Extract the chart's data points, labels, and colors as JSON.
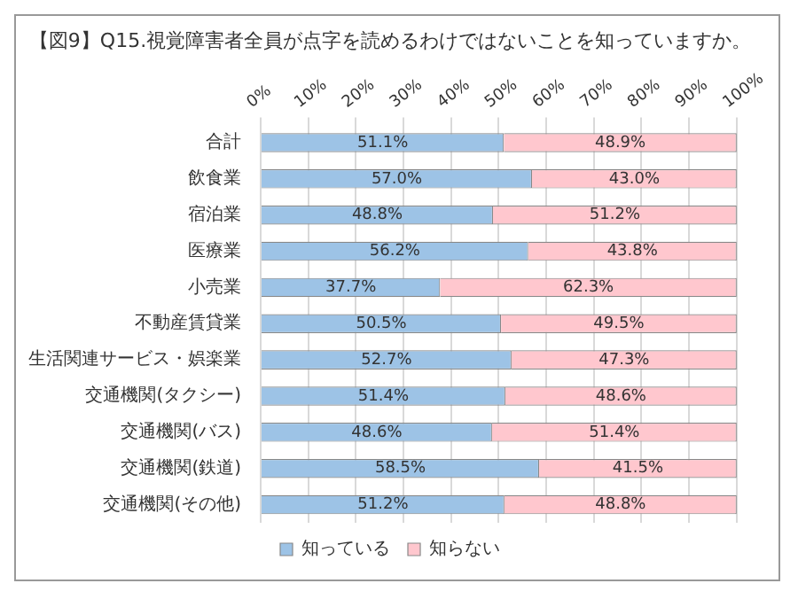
{
  "chart_data": {
    "type": "bar",
    "orientation": "horizontal",
    "stacked": true,
    "title": "【図9】Q15.視覚障害者全員が点字を読めるわけではないことを知っていますか。",
    "categories": [
      "合計",
      "飲食業",
      "宿泊業",
      "医療業",
      "小売業",
      "不動産賃貸業",
      "生活関連サービス・娯楽業",
      "交通機関(タクシー)",
      "交通機関(バス)",
      "交通機関(鉄道)",
      "交通機関(その他)"
    ],
    "series": [
      {
        "name": "知っている",
        "color": "#9dc3e6",
        "values": [
          51.1,
          57.0,
          48.8,
          56.2,
          37.7,
          50.5,
          52.7,
          51.4,
          48.6,
          58.5,
          51.2
        ],
        "value_labels": [
          "51.1%",
          "57.0%",
          "48.8%",
          "56.2%",
          "37.7%",
          "50.5%",
          "52.7%",
          "51.4%",
          "48.6%",
          "58.5%",
          "51.2%"
        ]
      },
      {
        "name": "知らない",
        "color": "#ffc7ce",
        "values": [
          48.9,
          43.0,
          51.2,
          43.8,
          62.3,
          49.5,
          47.3,
          48.6,
          51.4,
          41.5,
          48.8
        ],
        "value_labels": [
          "48.9%",
          "43.0%",
          "51.2%",
          "43.8%",
          "62.3%",
          "49.5%",
          "47.3%",
          "48.6%",
          "51.4%",
          "41.5%",
          "48.8%"
        ]
      }
    ],
    "xlim": [
      0,
      100
    ],
    "xticks": [
      {
        "value": 0,
        "label": "0%"
      },
      {
        "value": 10,
        "label": "10%"
      },
      {
        "value": 20,
        "label": "20%"
      },
      {
        "value": 30,
        "label": "30%"
      },
      {
        "value": 40,
        "label": "40%"
      },
      {
        "value": 50,
        "label": "50%"
      },
      {
        "value": 60,
        "label": "60%"
      },
      {
        "value": 70,
        "label": "70%"
      },
      {
        "value": 80,
        "label": "80%"
      },
      {
        "value": 90,
        "label": "90%"
      },
      {
        "value": 100,
        "label": "100%"
      }
    ],
    "grid": "x",
    "legend": "bottom"
  }
}
